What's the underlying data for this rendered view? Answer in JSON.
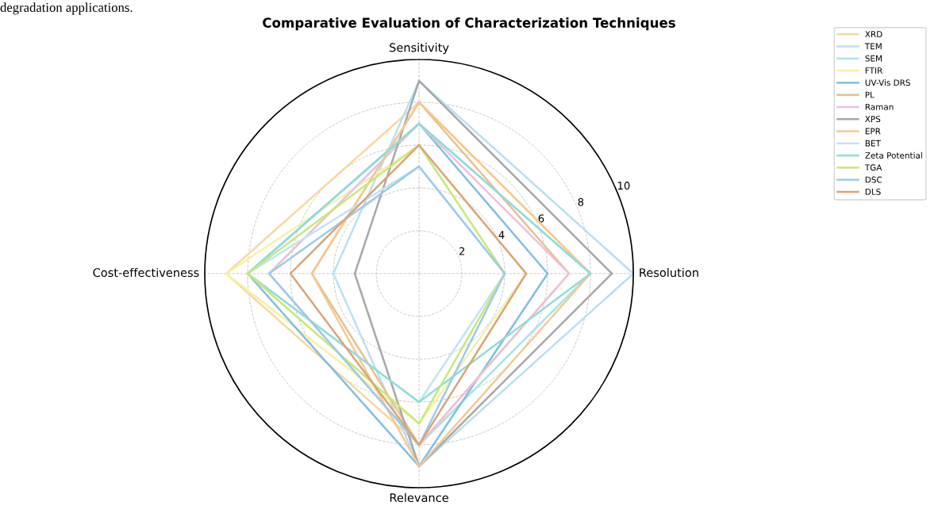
{
  "chart_data": {
    "type": "radar",
    "title": "Comparative Evaluation of Characterization Techniques",
    "categories": [
      "Sensitivity",
      "Resolution",
      "Relevance",
      "Cost-effectiveness"
    ],
    "ylim": [
      0,
      10
    ],
    "yticks": [
      2,
      4,
      6,
      8,
      10
    ],
    "grid": true,
    "legend": "top right",
    "line_style": "solid",
    "marker": "none",
    "annotations": [
      "degradation applications."
    ],
    "series": [
      {
        "name": "XRD",
        "color": "#f7d9a0",
        "values": [
          8,
          8,
          8,
          9
        ]
      },
      {
        "name": "TEM",
        "color": "#b8e0f0",
        "values": [
          9,
          10,
          9,
          4
        ]
      },
      {
        "name": "SEM",
        "color": "#a8e6ec",
        "values": [
          7,
          8,
          8,
          7
        ]
      },
      {
        "name": "FTIR",
        "color": "#f7f0a8",
        "values": [
          6,
          5,
          7,
          9
        ]
      },
      {
        "name": "UV-Vis DRS",
        "color": "#7fbfe0",
        "values": [
          7,
          6,
          9,
          8
        ]
      },
      {
        "name": "PL",
        "color": "#e8c090",
        "values": [
          8,
          7,
          8,
          5
        ]
      },
      {
        "name": "Raman",
        "color": "#f0c0d8",
        "values": [
          7,
          7,
          8,
          7
        ]
      },
      {
        "name": "XPS",
        "color": "#a8a8a8",
        "values": [
          9,
          9,
          9,
          3
        ]
      },
      {
        "name": "EPR",
        "color": "#f5c890",
        "values": [
          8,
          8,
          9,
          5
        ]
      },
      {
        "name": "BET",
        "color": "#c0e4f4",
        "values": [
          5,
          4,
          6,
          8
        ]
      },
      {
        "name": "Zeta Potential",
        "color": "#90dcd8",
        "values": [
          7,
          8,
          6,
          8
        ]
      },
      {
        "name": "TGA",
        "color": "#c8e87a",
        "values": [
          6,
          4,
          7,
          8
        ]
      },
      {
        "name": "DSC",
        "color": "#9ccbe8",
        "values": [
          5,
          4,
          8,
          7
        ]
      },
      {
        "name": "DLS",
        "color": "#d9a57a",
        "values": [
          6,
          5,
          8,
          6
        ]
      }
    ]
  }
}
